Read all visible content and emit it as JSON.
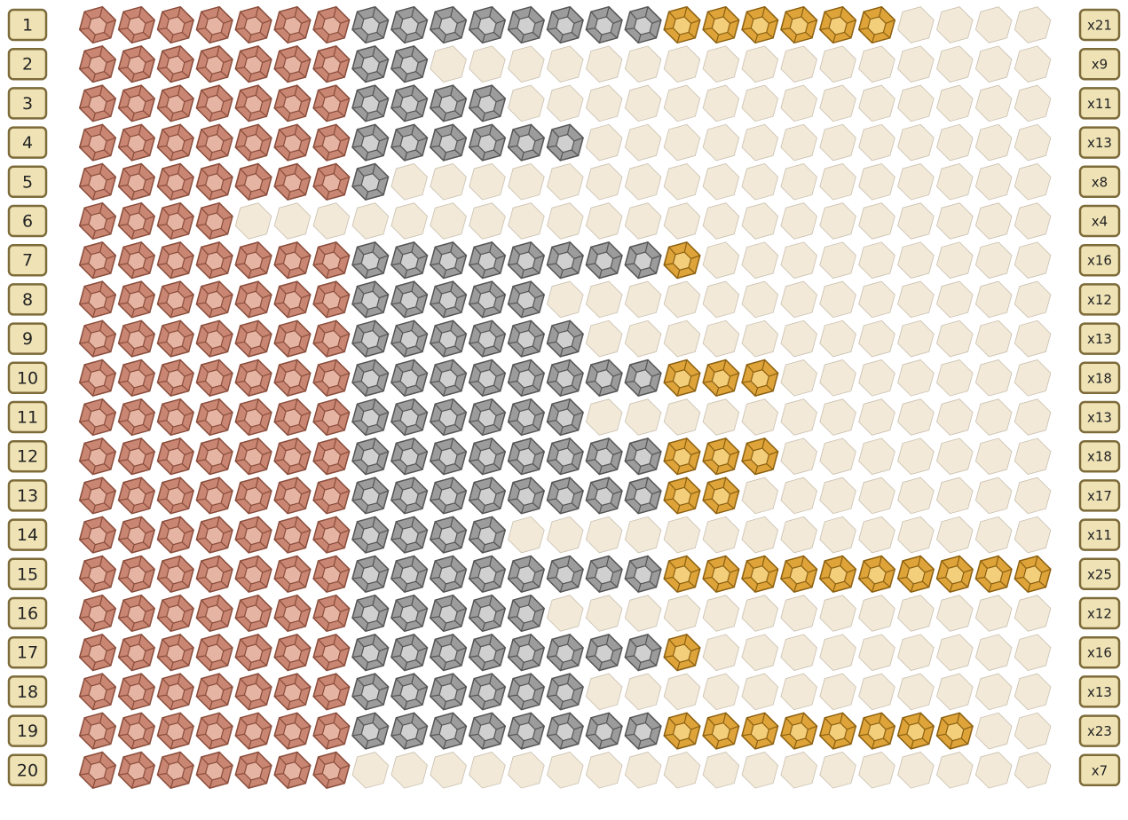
{
  "rows": [
    {
      "label": "1",
      "count": 21,
      "count_label": "x21"
    },
    {
      "label": "2",
      "count": 9,
      "count_label": "x9"
    },
    {
      "label": "3",
      "count": 11,
      "count_label": "x11"
    },
    {
      "label": "4",
      "count": 13,
      "count_label": "x13"
    },
    {
      "label": "5",
      "count": 8,
      "count_label": "x8"
    },
    {
      "label": "6",
      "count": 4,
      "count_label": "x4"
    },
    {
      "label": "7",
      "count": 16,
      "count_label": "x16"
    },
    {
      "label": "8",
      "count": 12,
      "count_label": "x12"
    },
    {
      "label": "9",
      "count": 13,
      "count_label": "x13"
    },
    {
      "label": "10",
      "count": 18,
      "count_label": "x18"
    },
    {
      "label": "11",
      "count": 13,
      "count_label": "x13"
    },
    {
      "label": "12",
      "count": 18,
      "count_label": "x18"
    },
    {
      "label": "13",
      "count": 17,
      "count_label": "x17"
    },
    {
      "label": "14",
      "count": 11,
      "count_label": "x11"
    },
    {
      "label": "15",
      "count": 25,
      "count_label": "x25"
    },
    {
      "label": "16",
      "count": 12,
      "count_label": "x12"
    },
    {
      "label": "17",
      "count": 16,
      "count_label": "x16"
    },
    {
      "label": "18",
      "count": 13,
      "count_label": "x13"
    },
    {
      "label": "19",
      "count": 23,
      "count_label": "x23"
    },
    {
      "label": "20",
      "count": 7,
      "count_label": "x7"
    }
  ]
}
